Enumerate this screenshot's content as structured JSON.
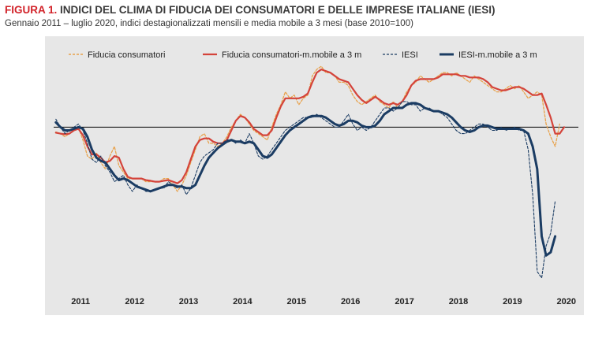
{
  "header": {
    "figure_label": "FIGURA 1.",
    "title": "INDICI DEL CLIMA DI FIDUCIA DEI CONSUMATORI E DELLE IMPRESE ITALIANE (IESI)",
    "subtitle": "Gennaio 2011 – luglio 2020, indici destagionalizzati mensili e media mobile a 3 mesi (base 2010=100)"
  },
  "colors": {
    "consumer": "#d4433a",
    "consumer_monthly": "#e8a24c",
    "iesi": "#1b3c63",
    "panel": "#e7e7e7"
  },
  "chart_data": {
    "type": "line",
    "x_ticks": [
      "2011",
      "2012",
      "2013",
      "2014",
      "2015",
      "2016",
      "2017",
      "2018",
      "2019",
      "2020"
    ],
    "ylim": [
      50,
      120
    ],
    "y_ticks": [
      50,
      60,
      70,
      80,
      90,
      100,
      110,
      120
    ],
    "reference_line": 100,
    "legend_position": "top",
    "series": [
      {
        "name": "Fiducia consumatori",
        "style": "dashed",
        "values": [
          98.5,
          98,
          97,
          98,
          99,
          100,
          96,
          91,
          90,
          92,
          89,
          87,
          91,
          94,
          88,
          86,
          84,
          84,
          84,
          84,
          83,
          83,
          83,
          83,
          84,
          84,
          82,
          80,
          82,
          85,
          89,
          93,
          97,
          98,
          95,
          95,
          94,
          95,
          97,
          100,
          102,
          104,
          103,
          101,
          99,
          98,
          97,
          96,
          100,
          104,
          107,
          111,
          109,
          110,
          107,
          109,
          110,
          116,
          118,
          119,
          117,
          117,
          116,
          114,
          114,
          113,
          110,
          108,
          107,
          108,
          109,
          110,
          108,
          107,
          106,
          108,
          106,
          108,
          111,
          113,
          114,
          116,
          115,
          114,
          115,
          116,
          117,
          117,
          116,
          117,
          116,
          115,
          114,
          116,
          115,
          114,
          113,
          112,
          111,
          111,
          112,
          113,
          112,
          113,
          111,
          109,
          110,
          111,
          110,
          101,
          97,
          94,
          101
        ]
      },
      {
        "name": "Fiducia consumatori-m.mobile a 3 m",
        "style": "solid",
        "values": [
          98.3,
          98,
          97.8,
          98,
          99,
          99.5,
          97.5,
          94,
          91.5,
          91.5,
          90.5,
          89,
          89.5,
          91,
          90.5,
          87,
          84.5,
          84,
          84,
          84,
          83.5,
          83.3,
          83,
          83,
          83.3,
          83.5,
          83,
          82.5,
          83.5,
          86,
          90,
          94,
          96,
          96.5,
          96.5,
          95.5,
          95,
          95,
          96,
          99,
          102,
          103.5,
          103,
          101.5,
          99.5,
          98.5,
          97.5,
          97.5,
          99,
          103,
          106.5,
          109,
          109,
          109,
          109,
          109.5,
          110.5,
          114,
          117,
          118,
          117.5,
          117,
          116,
          115,
          114.5,
          114,
          112,
          110,
          108.5,
          107.5,
          108.5,
          109.5,
          108.5,
          107.5,
          107,
          107.5,
          107,
          108,
          110,
          113,
          114.5,
          115,
          115,
          115,
          115,
          115.5,
          116.5,
          116.5,
          116.5,
          116.5,
          116,
          116,
          115.5,
          115.5,
          115.5,
          115,
          114,
          112.5,
          112,
          111.5,
          111.5,
          112,
          112.5,
          112.5,
          112,
          111,
          110,
          110,
          110.5,
          107,
          103,
          98,
          98,
          100
        ]
      },
      {
        "name": "IESI",
        "style": "dashed",
        "values": [
          102.5,
          100,
          98,
          99,
          100,
          101,
          99,
          95,
          90,
          89,
          91,
          88,
          86,
          83,
          84,
          85,
          82,
          80,
          82,
          81,
          80,
          80,
          80.5,
          81,
          81,
          83,
          82,
          81,
          82,
          79,
          81,
          85,
          89,
          91,
          92,
          93,
          95,
          95,
          96,
          96,
          95,
          96,
          95,
          98,
          95,
          91,
          90,
          91,
          93,
          95,
          97,
          99,
          100,
          101,
          102,
          103,
          103,
          103,
          104,
          103,
          102,
          101,
          100,
          100,
          102,
          104,
          101,
          99,
          100,
          99,
          100,
          102,
          104,
          106,
          106,
          105,
          106,
          108,
          108,
          107,
          107,
          105,
          106,
          106,
          105,
          105,
          104,
          103,
          101,
          99,
          98,
          98,
          99,
          100,
          101,
          101,
          100,
          99,
          99,
          100,
          99,
          99.5,
          100,
          99,
          99,
          93,
          79,
          55,
          53,
          63,
          67,
          77
        ]
      },
      {
        "name": "IESI-m.mobile a 3 m",
        "style": "solid",
        "values": [
          101.5,
          100,
          99,
          99,
          99.5,
          100,
          99.5,
          97,
          93,
          90.5,
          89.5,
          89,
          87,
          85,
          83.5,
          84,
          83.5,
          82.5,
          81.5,
          81,
          80.5,
          80,
          80.5,
          81,
          81.5,
          82,
          82,
          81.5,
          81.5,
          81,
          81,
          82,
          85,
          88,
          90.5,
          92,
          93.5,
          94.5,
          95.5,
          96,
          95.5,
          95.5,
          95,
          95.5,
          95,
          93,
          91,
          90.5,
          91.5,
          93.5,
          95.5,
          97.5,
          99,
          100,
          101,
          102,
          103,
          103.5,
          103.5,
          103.5,
          103,
          102,
          101,
          100.5,
          101,
          102,
          102,
          101.5,
          100.5,
          100,
          100,
          100.5,
          102,
          104,
          105,
          106,
          106,
          106,
          107,
          107.5,
          107.5,
          107,
          106,
          105.5,
          105,
          105,
          104.5,
          104,
          103,
          101.5,
          100,
          99,
          98.5,
          99,
          100,
          100.5,
          100.5,
          100,
          99.5,
          99.5,
          99.5,
          99.5,
          99.5,
          99.5,
          99,
          98,
          94,
          87,
          66,
          60,
          61,
          66
        ]
      }
    ]
  }
}
